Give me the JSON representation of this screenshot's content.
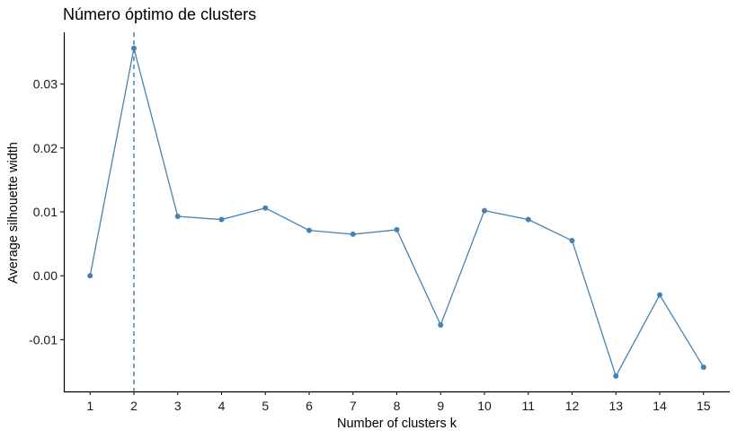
{
  "chart_data": {
    "type": "line",
    "title": "Número óptimo de clusters",
    "xlabel": "Number of clusters k",
    "ylabel": "Average silhouette width",
    "x": [
      1,
      2,
      3,
      4,
      5,
      6,
      7,
      8,
      9,
      10,
      11,
      12,
      13,
      14,
      15
    ],
    "x_tick_labels": [
      "1",
      "2",
      "3",
      "4",
      "5",
      "6",
      "7",
      "8",
      "9",
      "10",
      "11",
      "12",
      "13",
      "14",
      "15"
    ],
    "values": [
      0.0,
      0.0356,
      0.0093,
      0.0088,
      0.0106,
      0.0071,
      0.0065,
      0.0072,
      -0.0077,
      0.0102,
      0.0088,
      0.0055,
      -0.0157,
      -0.003,
      -0.0143
    ],
    "y_ticks": [
      -0.01,
      0.0,
      0.01,
      0.02,
      0.03
    ],
    "y_tick_labels": [
      "-0.01",
      "0.00",
      "0.01",
      "0.02",
      "0.03"
    ],
    "ylim": [
      -0.0181,
      0.0381
    ],
    "xlim": [
      0.4,
      15.6
    ],
    "optimal_k": 2,
    "grid": false,
    "series_color": "#4682B4",
    "reference_line_color": "#4682B4"
  }
}
